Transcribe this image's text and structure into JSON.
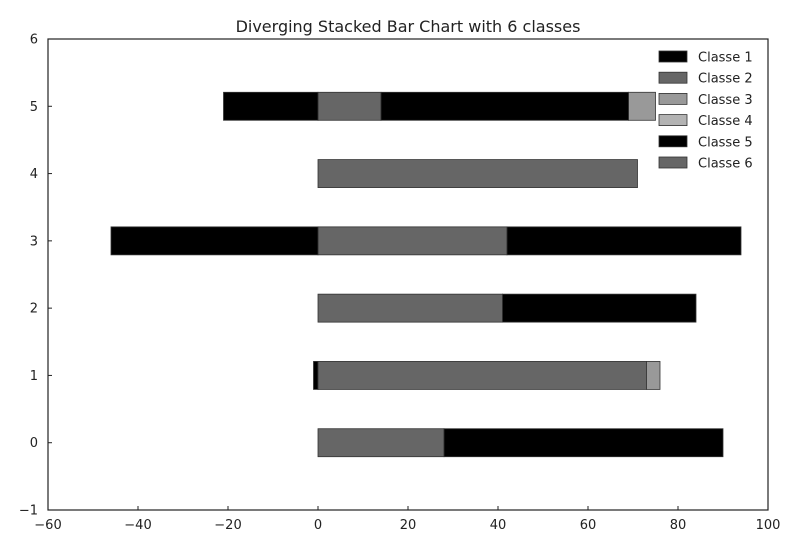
{
  "chart_data": {
    "type": "bar",
    "orientation": "horizontal",
    "stacking": "diverging",
    "title": "Diverging Stacked Bar Chart with 6 classes",
    "xlabel": "",
    "ylabel": "",
    "xlim": [
      -60,
      100
    ],
    "ylim": [
      -1,
      6
    ],
    "xticks": [
      -60,
      -40,
      -20,
      0,
      20,
      40,
      60,
      80,
      100
    ],
    "yticks": [
      -1,
      0,
      1,
      2,
      3,
      4,
      5,
      6
    ],
    "grid": false,
    "legend_position": "top-right",
    "categories": [
      0,
      1,
      2,
      3,
      4,
      5
    ],
    "series": [
      {
        "name": "Classe 1",
        "color": "#000000",
        "segments": [
          [
            0,
            0,
            0
          ],
          [
            1,
            -1,
            0
          ],
          [
            2,
            0,
            0
          ],
          [
            3,
            0,
            0
          ],
          [
            4,
            0,
            0
          ],
          [
            5,
            0,
            0
          ]
        ]
      },
      {
        "name": "Classe 2",
        "color": "#666666",
        "segments": [
          [
            0,
            0,
            28
          ],
          [
            1,
            0,
            73
          ],
          [
            2,
            0,
            41
          ],
          [
            3,
            0,
            42
          ],
          [
            4,
            0,
            71
          ],
          [
            5,
            0,
            14
          ]
        ]
      },
      {
        "name": "Classe 3",
        "color": "#999999",
        "segments": [
          [
            0,
            0,
            0
          ],
          [
            1,
            73,
            76
          ],
          [
            2,
            0,
            0
          ],
          [
            3,
            0,
            0
          ],
          [
            4,
            0,
            0
          ],
          [
            5,
            69,
            75
          ]
        ]
      },
      {
        "name": "Classe 4",
        "color": "#b3b3b3",
        "segments": []
      },
      {
        "name": "Classe 5",
        "color": "#000000",
        "segments": [
          [
            0,
            28,
            90
          ],
          [
            2,
            41,
            84
          ],
          [
            3,
            -46,
            0
          ],
          [
            3,
            42,
            94
          ],
          [
            5,
            -21,
            0
          ],
          [
            5,
            14,
            69
          ]
        ]
      },
      {
        "name": "Classe 6",
        "color": "#666666",
        "segments": []
      }
    ]
  }
}
